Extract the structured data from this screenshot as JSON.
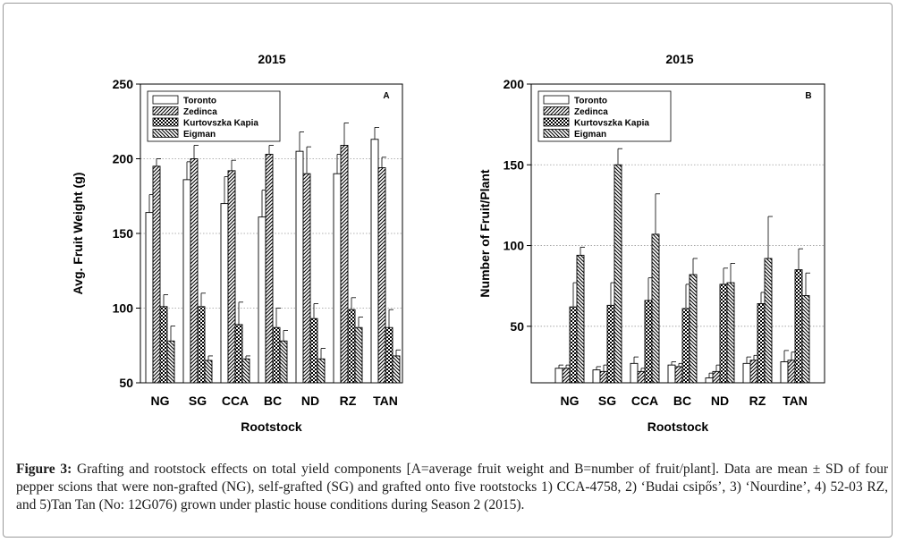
{
  "figure": {
    "caption_label": "Figure 3:",
    "caption_text": " Grafting and rootstock effects on total yield components [A=average fruit weight and B=number of fruit/plant]. Data are mean ± SD of four pepper scions that were non-grafted (NG), self-grafted (SG) and grafted onto five rootstocks 1) CCA-4758, 2) ‘Budai csipős’, 3) ‘Nourdine’, 4) 52-03 RZ, and 5)Tan Tan (No: 12G076) grown under plastic house conditions during Season 2 (2015)."
  },
  "chart_data": [
    {
      "type": "bar",
      "panel_label": "A",
      "title": "2015",
      "xlabel": "Rootstock",
      "ylabel": "Avg. Fruit Weight (g)",
      "ylim": [
        50,
        250
      ],
      "yticks": [
        50,
        100,
        150,
        200,
        250
      ],
      "gridlines": [
        100,
        150,
        200
      ],
      "legend_position": "top-left",
      "categories": [
        "NG",
        "SG",
        "CCA",
        "BC",
        "ND",
        "RZ",
        "TAN"
      ],
      "series": [
        {
          "name": "Toronto",
          "pattern": "open",
          "values": [
            164,
            186,
            170,
            161,
            205,
            190,
            213
          ],
          "errors": [
            12,
            12,
            18,
            18,
            13,
            13,
            8
          ]
        },
        {
          "name": "Zedinca",
          "pattern": "diag",
          "values": [
            195,
            200,
            192,
            203,
            190,
            209,
            194
          ],
          "errors": [
            5,
            9,
            7,
            6,
            18,
            15,
            7
          ]
        },
        {
          "name": "Kurtovszka Kapia",
          "pattern": "checker",
          "values": [
            101,
            101,
            89,
            87,
            93,
            99,
            87
          ],
          "errors": [
            8,
            9,
            15,
            13,
            10,
            8,
            12
          ]
        },
        {
          "name": "Eigman",
          "pattern": "anti",
          "values": [
            78,
            65,
            66,
            78,
            66,
            87,
            68
          ],
          "errors": [
            10,
            3,
            2,
            7,
            7,
            7,
            4
          ]
        }
      ]
    },
    {
      "type": "bar",
      "panel_label": "B",
      "title": "2015",
      "xlabel": "Rootstock",
      "ylabel": "Number of Fruit/Plant",
      "ylim": [
        15,
        200
      ],
      "yticks": [
        50,
        100,
        150,
        200
      ],
      "gridlines": [
        50,
        100,
        150
      ],
      "legend_position": "top-left",
      "categories": [
        "NG",
        "SG",
        "CCA",
        "BC",
        "ND",
        "RZ",
        "TAN"
      ],
      "series": [
        {
          "name": "Toronto",
          "pattern": "open",
          "values": [
            24,
            23,
            27,
            26,
            18,
            27,
            28
          ],
          "errors": [
            2,
            2,
            4,
            2,
            3,
            4,
            7
          ]
        },
        {
          "name": "Zedinca",
          "pattern": "diag",
          "values": [
            24,
            22,
            22,
            25,
            22,
            29,
            29
          ],
          "errors": [
            2,
            4,
            2,
            2,
            4,
            3,
            5
          ]
        },
        {
          "name": "Kurtovszka Kapia",
          "pattern": "checker",
          "values": [
            62,
            63,
            66,
            61,
            76,
            64,
            85
          ],
          "errors": [
            15,
            14,
            14,
            15,
            10,
            7,
            13
          ]
        },
        {
          "name": "Eigman",
          "pattern": "anti",
          "values": [
            94,
            150,
            107,
            82,
            77,
            92,
            69
          ],
          "errors": [
            5,
            10,
            25,
            10,
            12,
            26,
            14
          ]
        }
      ]
    }
  ]
}
